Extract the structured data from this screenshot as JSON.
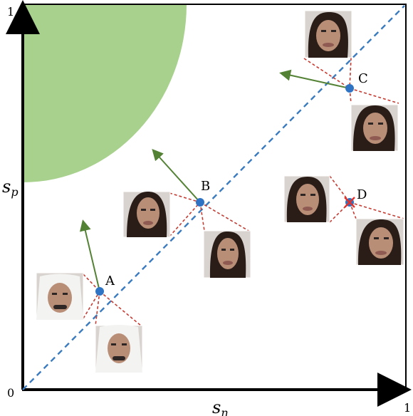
{
  "axes": {
    "x_label": "s",
    "x_sub": "n",
    "y_label": "s",
    "y_sub": "p",
    "origin_label": "0",
    "x_max_label": "1",
    "y_max_label": "1"
  },
  "points": [
    {
      "label": "A",
      "x": 0.2,
      "y": 0.26
    },
    {
      "label": "B",
      "x": 0.45,
      "y": 0.48
    },
    {
      "label": "C",
      "x": 0.84,
      "y": 0.78
    },
    {
      "label": "D",
      "x": 0.84,
      "y": 0.48
    }
  ],
  "colors": {
    "region": "#a7d18c",
    "diagonal": "#3a7bbf",
    "point": "#2f74c4",
    "arrow": "#548235",
    "connector": "#c53c33",
    "cross": "#e0312a"
  }
}
